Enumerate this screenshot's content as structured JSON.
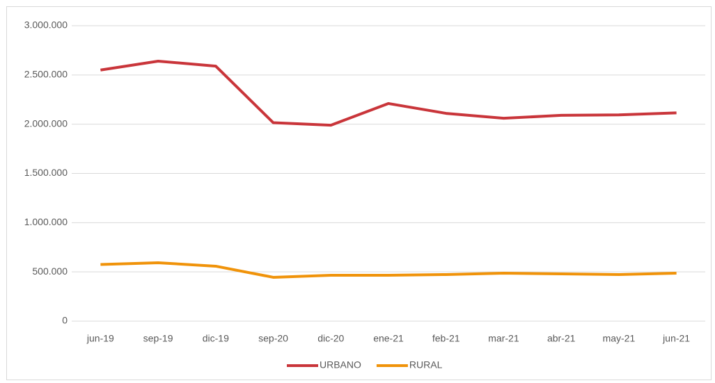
{
  "chart_data": {
    "type": "line",
    "categories": [
      "jun-19",
      "sep-19",
      "dic-19",
      "sep-20",
      "dic-20",
      "ene-21",
      "feb-21",
      "mar-21",
      "abr-21",
      "may-21",
      "jun-21"
    ],
    "series": [
      {
        "name": "URBANO",
        "color": "#c9353a",
        "values": [
          2550000,
          2640000,
          2590000,
          2015000,
          1990000,
          2210000,
          2110000,
          2060000,
          2090000,
          2095000,
          2115000
        ]
      },
      {
        "name": "RURAL",
        "color": "#f0930a",
        "values": [
          575000,
          593000,
          558000,
          445000,
          466000,
          466000,
          473000,
          487000,
          480000,
          473000,
          487000
        ]
      }
    ],
    "ylim": [
      0,
      3000000
    ],
    "yticks": [
      0,
      {
        "value": 500000,
        "label": "500.000"
      },
      {
        "value": 1000000,
        "label": "1.000.000"
      },
      {
        "value": 1500000,
        "label": "1.500.000"
      },
      {
        "value": 2000000,
        "label": "2.000.000"
      },
      {
        "value": 2500000,
        "label": "2.500.000"
      },
      {
        "value": 3000000,
        "label": "3.000.000"
      }
    ],
    "grid": true,
    "legend": "bottom"
  }
}
